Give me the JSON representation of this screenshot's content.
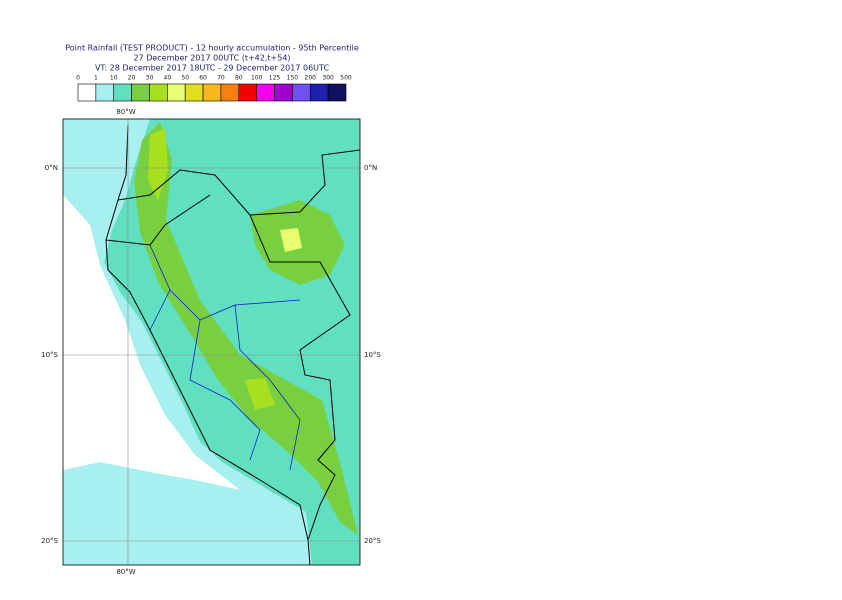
{
  "header": {
    "lines": [
      "Point Rainfall (TEST PRODUCT) - 12 hourly accumulation - 95th Percentile",
      "27 December 2017 00UTC (t+42,t+54)",
      "VT: 28 December 2017 18UTC - 29 December 2017 06UTC"
    ]
  },
  "legend": {
    "labels": [
      0,
      1,
      10,
      20,
      30,
      40,
      50,
      60,
      70,
      80,
      100,
      125,
      150,
      200,
      300,
      500
    ],
    "colors": [
      "#ffffff",
      "#a8f0f0",
      "#60e0c0",
      "#78d040",
      "#a8e020",
      "#e8ff70",
      "#e0e020",
      "#f8b820",
      "#f88010",
      "#f80000",
      "#f000f0",
      "#a000d0",
      "#7050f0",
      "#2020b0",
      "#101060"
    ]
  },
  "map": {
    "lon_labels": [
      "80°W",
      "80°W"
    ],
    "lat_labels": [
      "0°N",
      "10°S",
      "20°S",
      "0°N",
      "10°S",
      "20°S"
    ]
  }
}
